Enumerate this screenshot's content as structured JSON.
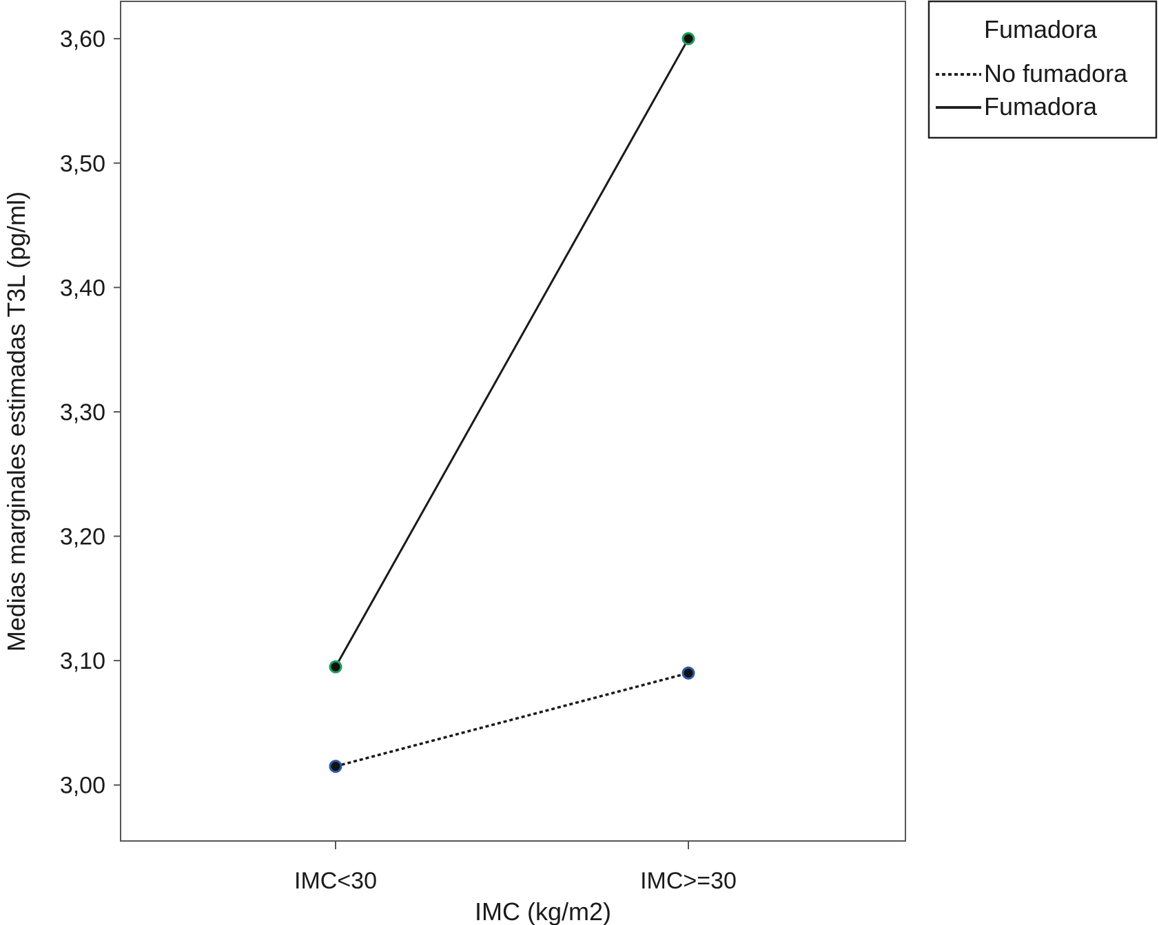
{
  "chart_data": {
    "type": "line",
    "title": "",
    "xlabel": "IMC (kg/m2)",
    "ylabel": "Medias marginales estimadas T3L (pg/ml)",
    "categories": [
      "IMC<30",
      "IMC>=30"
    ],
    "ylim": [
      2.955,
      3.63
    ],
    "yticks": [
      3.0,
      3.1,
      3.2,
      3.3,
      3.4,
      3.5,
      3.6
    ],
    "ytick_labels": [
      "3,00",
      "3,10",
      "3,20",
      "3,30",
      "3,40",
      "3,50",
      "3,60"
    ],
    "grid": false,
    "legend_title": "Fumadora",
    "legend_position": "top-right (outside plot)",
    "series": [
      {
        "name": "No fumadora",
        "values": [
          3.015,
          3.09
        ],
        "style": "dotted",
        "marker_color": "#2a5ca8"
      },
      {
        "name": "Fumadora",
        "values": [
          3.095,
          3.6
        ],
        "style": "solid",
        "marker_color": "#1fa05a"
      }
    ]
  }
}
